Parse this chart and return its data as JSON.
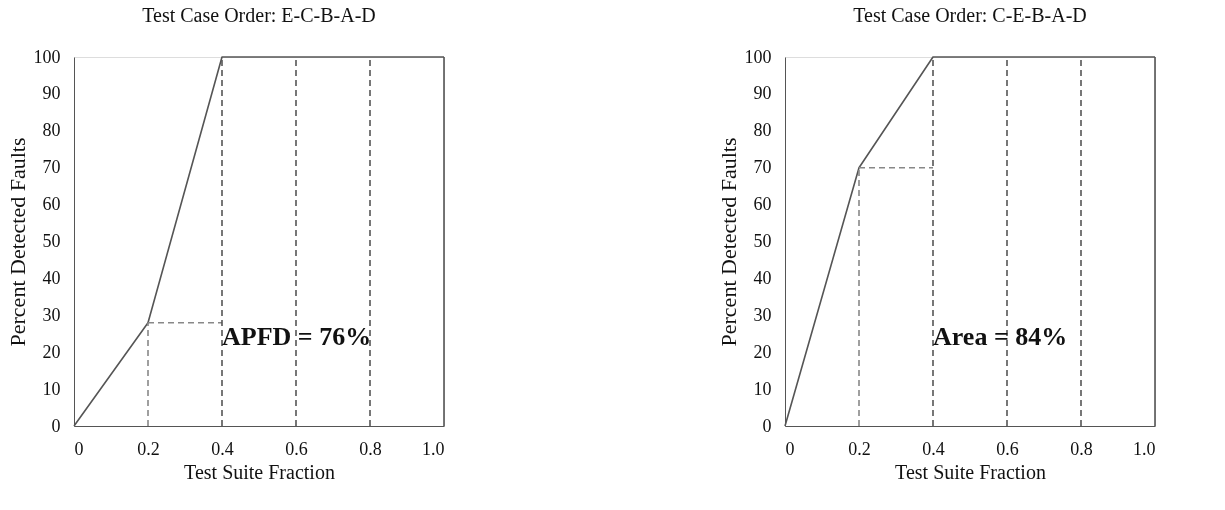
{
  "chart_data": [
    {
      "type": "line",
      "title": "Test Case Order: E-C-B-A-D",
      "xlabel": "Test Suite Fraction",
      "ylabel": "Percent Detected Faults",
      "xlim": [
        0,
        1
      ],
      "xticks": [
        0,
        0.2,
        0.4,
        0.6,
        0.8,
        {
          "value": 1,
          "label": "1.0"
        }
      ],
      "ylim": [
        0,
        100
      ],
      "yticks": [
        0,
        10,
        20,
        30,
        40,
        50,
        60,
        70,
        80,
        90,
        100
      ],
      "series": [
        {
          "color": "#555555",
          "line_style": "solid",
          "x": [
            0,
            0.2,
            0.4,
            1.0
          ],
          "values": [
            0,
            28,
            100,
            100
          ]
        },
        {
          "color": "#555555",
          "line_style": "solid",
          "x": [
            1.0,
            1.0
          ],
          "values": [
            0,
            100
          ]
        },
        {
          "color": "#888888",
          "line_style": "dashed",
          "x": [
            0.2,
            0.2
          ],
          "values": [
            0,
            28
          ]
        },
        {
          "color": "#888888",
          "line_style": "dashed",
          "x": [
            0.2,
            0.4
          ],
          "values": [
            28,
            28
          ]
        },
        {
          "color": "#555555",
          "line_style": "dashed",
          "x": [
            0.4,
            0.4
          ],
          "values": [
            0,
            100
          ]
        },
        {
          "color": "#555555",
          "line_style": "dashed",
          "x": [
            0.6,
            0.6
          ],
          "values": [
            0,
            100
          ]
        },
        {
          "color": "#555555",
          "line_style": "dashed",
          "x": [
            0.8,
            0.8
          ],
          "values": [
            0,
            100
          ]
        }
      ],
      "annotations": [
        "APFD = 76%"
      ]
    },
    {
      "type": "line",
      "title": "Test Case Order: C-E-B-A-D",
      "xlabel": "Test Suite Fraction",
      "ylabel": "Percent Detected Faults",
      "xlim": [
        0,
        1
      ],
      "xticks": [
        0,
        0.2,
        0.4,
        0.6,
        0.8,
        {
          "value": 1,
          "label": "1.0"
        }
      ],
      "ylim": [
        0,
        100
      ],
      "yticks": [
        0,
        10,
        20,
        30,
        40,
        50,
        60,
        70,
        80,
        90,
        100
      ],
      "series": [
        {
          "color": "#555555",
          "line_style": "solid",
          "x": [
            0,
            0.2,
            0.4,
            1.0
          ],
          "values": [
            0,
            70,
            100,
            100
          ]
        },
        {
          "color": "#555555",
          "line_style": "solid",
          "x": [
            1.0,
            1.0
          ],
          "values": [
            0,
            100
          ]
        },
        {
          "color": "#888888",
          "line_style": "dashed",
          "x": [
            0.2,
            0.2
          ],
          "values": [
            0,
            70
          ]
        },
        {
          "color": "#888888",
          "line_style": "dashed",
          "x": [
            0.2,
            0.4
          ],
          "values": [
            70,
            70
          ]
        },
        {
          "color": "#555555",
          "line_style": "dashed",
          "x": [
            0.4,
            0.4
          ],
          "values": [
            0,
            100
          ]
        },
        {
          "color": "#555555",
          "line_style": "dashed",
          "x": [
            0.6,
            0.6
          ],
          "values": [
            0,
            100
          ]
        },
        {
          "color": "#555555",
          "line_style": "dashed",
          "x": [
            0.8,
            0.8
          ],
          "values": [
            0,
            100
          ]
        }
      ],
      "annotations": [
        "Area = 84%"
      ]
    }
  ]
}
